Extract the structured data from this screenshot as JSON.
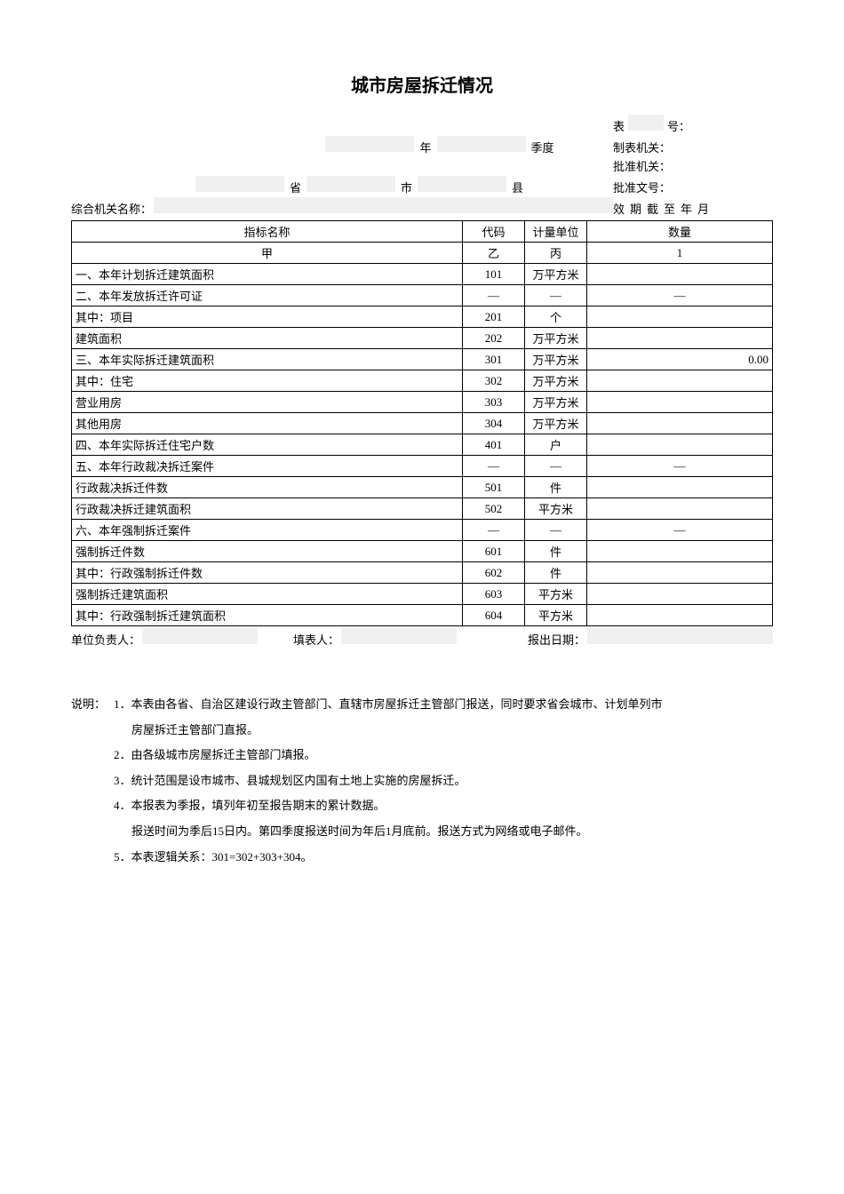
{
  "title": "城市房屋拆迁情况",
  "header": {
    "table_label": "表",
    "number_label": "号：",
    "year_label": "年",
    "quarter_label": "季度",
    "form_org_label": "制表机关：",
    "approve_org_label": "批准机关：",
    "province_label": "省",
    "city_label": "市",
    "county_label": "县",
    "approve_no_label": "批准文号：",
    "org_name_label": "综合机关名称：",
    "valid_label": "效期截至年月"
  },
  "table": {
    "headers": {
      "indicator": "指标名称",
      "code": "代码",
      "unit": "计量单位",
      "qty": "数量"
    },
    "subheaders": {
      "indicator": "甲",
      "code": "乙",
      "unit": "丙",
      "qty": "1"
    },
    "rows": [
      {
        "label": "一、本年计划拆迁建筑面积",
        "code": "101",
        "unit": "万平方米",
        "qty": "",
        "indent": 0
      },
      {
        "label": "二、本年发放拆迁许可证",
        "code": "—",
        "unit": "—",
        "qty": "—",
        "indent": 0,
        "dash": true
      },
      {
        "label": "其中：项目",
        "code": "201",
        "unit": "个",
        "qty": "",
        "indent": 1
      },
      {
        "label": "建筑面积",
        "code": "202",
        "unit": "万平方米",
        "qty": "",
        "indent": 2
      },
      {
        "label": "三、本年实际拆迁建筑面积",
        "code": "301",
        "unit": "万平方米",
        "qty": "0.00",
        "indent": 0
      },
      {
        "label": "其中：住宅",
        "code": "302",
        "unit": "万平方米",
        "qty": "",
        "indent": 1
      },
      {
        "label": "营业用房",
        "code": "303",
        "unit": "万平方米",
        "qty": "",
        "indent": 2
      },
      {
        "label": "其他用房",
        "code": "304",
        "unit": "万平方米",
        "qty": "",
        "indent": 2
      },
      {
        "label": "四、本年实际拆迁住宅户数",
        "code": "401",
        "unit": "户",
        "qty": "",
        "indent": 0
      },
      {
        "label": "五、本年行政裁决拆迁案件",
        "code": "—",
        "unit": "—",
        "qty": "—",
        "indent": 0,
        "dash": true
      },
      {
        "label": "行政裁决拆迁件数",
        "code": "501",
        "unit": "件",
        "qty": "",
        "indent": 1
      },
      {
        "label": "行政裁决拆迁建筑面积",
        "code": "502",
        "unit": "平方米",
        "qty": "",
        "indent": 1
      },
      {
        "label": "六、本年强制拆迁案件",
        "code": "—",
        "unit": "—",
        "qty": "—",
        "indent": 0,
        "dash": true
      },
      {
        "label": "强制拆迁件数",
        "code": "601",
        "unit": "件",
        "qty": "",
        "indent": 1
      },
      {
        "label": "其中：行政强制拆迁件数",
        "code": "602",
        "unit": "件",
        "qty": "",
        "indent": 3
      },
      {
        "label": "强制拆迁建筑面积",
        "code": "603",
        "unit": "平方米",
        "qty": "",
        "indent": 1
      },
      {
        "label": "其中：行政强制拆迁建筑面积",
        "code": "604",
        "unit": "平方米",
        "qty": "",
        "indent": 3
      }
    ]
  },
  "footer": {
    "person_in_charge": "单位负责人：",
    "form_filler": "填表人：",
    "report_date": "报出日期："
  },
  "notes": {
    "prefix": "说明：",
    "items": [
      {
        "num": "1．",
        "text": "本表由各省、自治区建设行政主管部门、直辖市房屋拆迁主管部门报送，同时要求省会城市、计划单列市",
        "cont": "房屋拆迁主管部门直报。"
      },
      {
        "num": "2．",
        "text": "由各级城市房屋拆迁主管部门填报。"
      },
      {
        "num": "3．",
        "text": "统计范围是设市城市、县城规划区内国有土地上实施的房屋拆迁。"
      },
      {
        "num": "4．",
        "text": "本报表为季报，填列年初至报告期末的累计数据。",
        "cont": "报送时间为季后15日内。第四季度报送时间为年后1月底前。报送方式为网络或电子邮件。"
      },
      {
        "num": "5．",
        "text": "本表逻辑关系：301=302+303+304。"
      }
    ]
  }
}
